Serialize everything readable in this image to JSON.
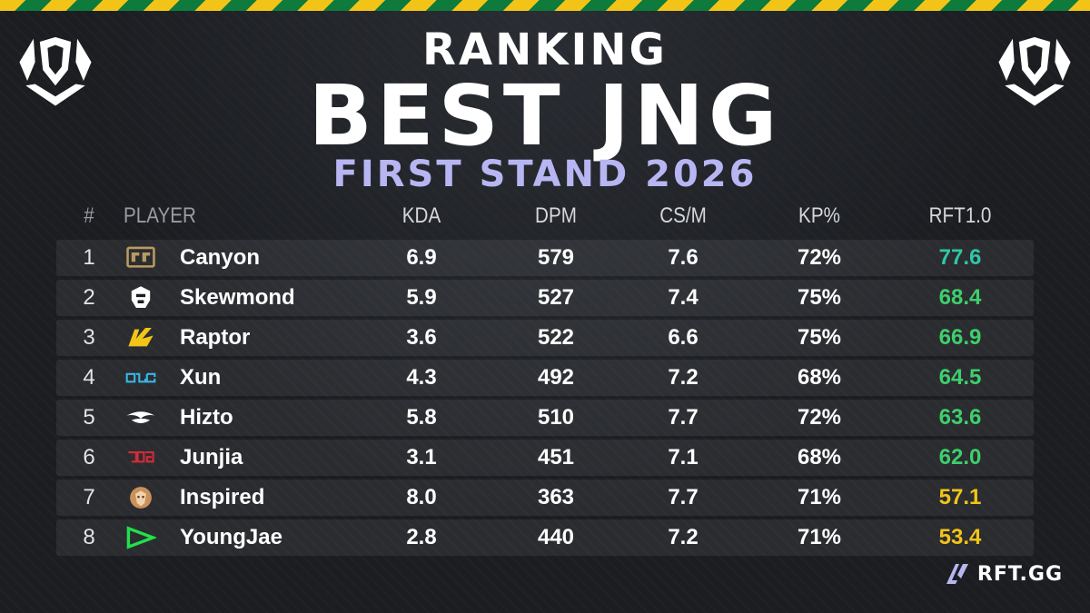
{
  "header": {
    "line1": "RANKING",
    "line2": "BEST JNG",
    "line3": "FIRST STAND 2026"
  },
  "columns": {
    "rank": "#",
    "player": "PLAYER",
    "kda": "KDA",
    "dpm": "DPM",
    "csm": "CS/M",
    "kp": "KP%",
    "rft": "RFT1.0"
  },
  "rows": [
    {
      "rank": "1",
      "team_icon": "gen-g-logo",
      "name": "Canyon",
      "kda": "6.9",
      "dpm": "579",
      "csm": "7.6",
      "kp": "72%",
      "rft": "77.6",
      "rft_color": "#2fc7a6"
    },
    {
      "rank": "2",
      "team_icon": "g2-logo",
      "name": "Skewmond",
      "kda": "5.9",
      "dpm": "527",
      "csm": "7.4",
      "kp": "75%",
      "rft": "68.4",
      "rft_color": "#3dcf6c"
    },
    {
      "rank": "3",
      "team_icon": "bilibili-gaming-yellow-logo",
      "name": "Raptor",
      "kda": "3.6",
      "dpm": "522",
      "csm": "6.6",
      "kp": "75%",
      "rft": "66.9",
      "rft_color": "#3dcf6c"
    },
    {
      "rank": "4",
      "team_icon": "blg-logo",
      "name": "Xun",
      "kda": "4.3",
      "dpm": "492",
      "csm": "7.2",
      "kp": "68%",
      "rft": "64.5",
      "rft_color": "#3dcf6c"
    },
    {
      "rank": "5",
      "team_icon": "team-secret-logo",
      "name": "Hizto",
      "kda": "5.8",
      "dpm": "510",
      "csm": "7.7",
      "kp": "72%",
      "rft": "63.6",
      "rft_color": "#3dcf6c"
    },
    {
      "rank": "6",
      "team_icon": "jdg-logo",
      "name": "Junjia",
      "kda": "3.1",
      "dpm": "451",
      "csm": "7.1",
      "kp": "68%",
      "rft": "62.0",
      "rft_color": "#3dcf6c"
    },
    {
      "rank": "7",
      "team_icon": "lion-logo",
      "name": "Inspired",
      "kda": "8.0",
      "dpm": "363",
      "csm": "7.7",
      "kp": "71%",
      "rft": "57.1",
      "rft_color": "#f2c418"
    },
    {
      "rank": "8",
      "team_icon": "loud-logo",
      "name": "YoungJae",
      "kda": "2.8",
      "dpm": "440",
      "csm": "7.2",
      "kp": "71%",
      "rft": "53.4",
      "rft_color": "#f2c418"
    }
  ],
  "brand": {
    "text": "RFT.GG",
    "icon": "rft-logo-icon"
  },
  "colors": {
    "stripe_yellow": "#f2c418",
    "stripe_green": "#0e7a3c",
    "subtitle": "#b7b6f2",
    "background": "#1b1d21"
  }
}
